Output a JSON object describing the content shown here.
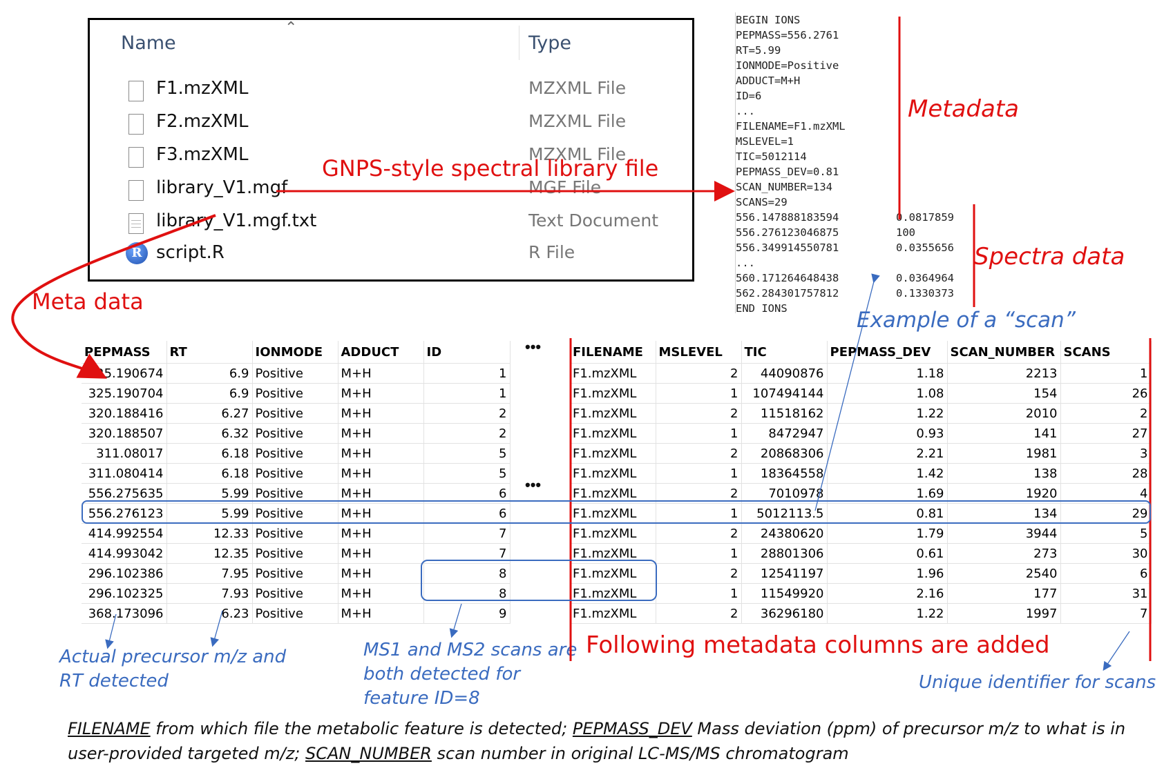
{
  "explorer": {
    "columns": {
      "name": "Name",
      "type": "Type"
    },
    "files": [
      {
        "name": "F1.mzXML",
        "type": "MZXML File",
        "icon": "file-icon"
      },
      {
        "name": "F2.mzXML",
        "type": "MZXML File",
        "icon": "file-icon"
      },
      {
        "name": "F3.mzXML",
        "type": "MZXML File",
        "icon": "file-icon"
      },
      {
        "name": "library_V1.mgf",
        "type": "MGF File",
        "icon": "file-icon"
      },
      {
        "name": "library_V1.mgf.txt",
        "type": "Text Document",
        "icon": "text-file-icon"
      },
      {
        "name": "script.R",
        "type": "R File",
        "icon": "r-file-icon"
      }
    ]
  },
  "mgf": {
    "metadata_lines": [
      "BEGIN IONS",
      "PEPMASS=556.2761",
      "RT=5.99",
      "IONMODE=Positive",
      "ADDUCT=M+H",
      "ID=6",
      "...",
      "FILENAME=F1.mzXML",
      "MSLEVEL=1",
      "TIC=5012114",
      "PEPMASS_DEV=0.81",
      "SCAN_NUMBER=134",
      "SCANS=29"
    ],
    "peaks": [
      {
        "mz": "556.147888183594",
        "intensity": "0.0817859"
      },
      {
        "mz": "556.276123046875",
        "intensity": "100"
      },
      {
        "mz": "556.349914550781",
        "intensity": "0.0355656"
      },
      {
        "mz": "...",
        "intensity": ""
      },
      {
        "mz": "560.171264648438",
        "intensity": "0.0364964"
      },
      {
        "mz": "562.284301757812",
        "intensity": "0.1330373"
      }
    ],
    "end_line": "END IONS"
  },
  "labels": {
    "gnps": "GNPS-style spectral library file",
    "metadata": "Metadata",
    "spectra": "Spectra data",
    "meta_data": "Meta data",
    "example_scan": "Example of a “scan”",
    "following_columns": "Following metadata columns are added",
    "precursor_1": "Actual precursor m/z and",
    "precursor_2": "RT detected",
    "ms1ms2_1": "MS1 and MS2 scans are",
    "ms1ms2_2": "both detected for",
    "ms1ms2_3": "feature ID=8",
    "unique_id": "Unique identifier for scans",
    "ellipsis": "•••"
  },
  "left_table": {
    "headers": [
      "PEPMASS",
      "RT",
      "IONMODE",
      "ADDUCT",
      "ID"
    ],
    "rows": [
      [
        "325.190674",
        "6.9",
        "Positive",
        "M+H",
        "1"
      ],
      [
        "325.190704",
        "6.9",
        "Positive",
        "M+H",
        "1"
      ],
      [
        "320.188416",
        "6.27",
        "Positive",
        "M+H",
        "2"
      ],
      [
        "320.188507",
        "6.32",
        "Positive",
        "M+H",
        "2"
      ],
      [
        "311.08017",
        "6.18",
        "Positive",
        "M+H",
        "5"
      ],
      [
        "311.080414",
        "6.18",
        "Positive",
        "M+H",
        "5"
      ],
      [
        "556.275635",
        "5.99",
        "Positive",
        "M+H",
        "6"
      ],
      [
        "556.276123",
        "5.99",
        "Positive",
        "M+H",
        "6"
      ],
      [
        "414.992554",
        "12.33",
        "Positive",
        "M+H",
        "7"
      ],
      [
        "414.993042",
        "12.35",
        "Positive",
        "M+H",
        "7"
      ],
      [
        "296.102386",
        "7.95",
        "Positive",
        "M+H",
        "8"
      ],
      [
        "296.102325",
        "7.93",
        "Positive",
        "M+H",
        "8"
      ],
      [
        "368.173096",
        "6.23",
        "Positive",
        "M+H",
        "9"
      ]
    ]
  },
  "right_table": {
    "headers": [
      "FILENAME",
      "MSLEVEL",
      "TIC",
      "PEPMASS_DEV",
      "SCAN_NUMBER",
      "SCANS"
    ],
    "rows": [
      [
        "F1.mzXML",
        "2",
        "44090876",
        "1.18",
        "2213",
        "1"
      ],
      [
        "F1.mzXML",
        "1",
        "107494144",
        "1.08",
        "154",
        "26"
      ],
      [
        "F1.mzXML",
        "2",
        "11518162",
        "1.22",
        "2010",
        "2"
      ],
      [
        "F1.mzXML",
        "1",
        "8472947",
        "0.93",
        "141",
        "27"
      ],
      [
        "F1.mzXML",
        "2",
        "20868306",
        "2.21",
        "1981",
        "3"
      ],
      [
        "F1.mzXML",
        "1",
        "18364558",
        "1.42",
        "138",
        "28"
      ],
      [
        "F1.mzXML",
        "2",
        "7010978",
        "1.69",
        "1920",
        "4"
      ],
      [
        "F1.mzXML",
        "1",
        "5012113.5",
        "0.81",
        "134",
        "29"
      ],
      [
        "F1.mzXML",
        "2",
        "24380620",
        "1.79",
        "3944",
        "5"
      ],
      [
        "F1.mzXML",
        "1",
        "28801306",
        "0.61",
        "273",
        "30"
      ],
      [
        "F1.mzXML",
        "2",
        "12541197",
        "1.96",
        "2540",
        "6"
      ],
      [
        "F1.mzXML",
        "1",
        "11549920",
        "2.16",
        "177",
        "31"
      ],
      [
        "F1.mzXML",
        "2",
        "36296180",
        "1.22",
        "1997",
        "7"
      ]
    ]
  },
  "caption": {
    "t1": "FILENAME",
    "t2": " from which file the metabolic feature is detected; ",
    "t3": "PEPMASS_DEV",
    "t4": " Mass deviation (ppm) of precursor m/z to what is in user-provided targeted m/z; ",
    "t5": "SCAN_NUMBER",
    "t6": " scan number in original LC-MS/MS chromatogram"
  },
  "colors": {
    "red": "#e01010",
    "blue": "#3a6bbf"
  }
}
